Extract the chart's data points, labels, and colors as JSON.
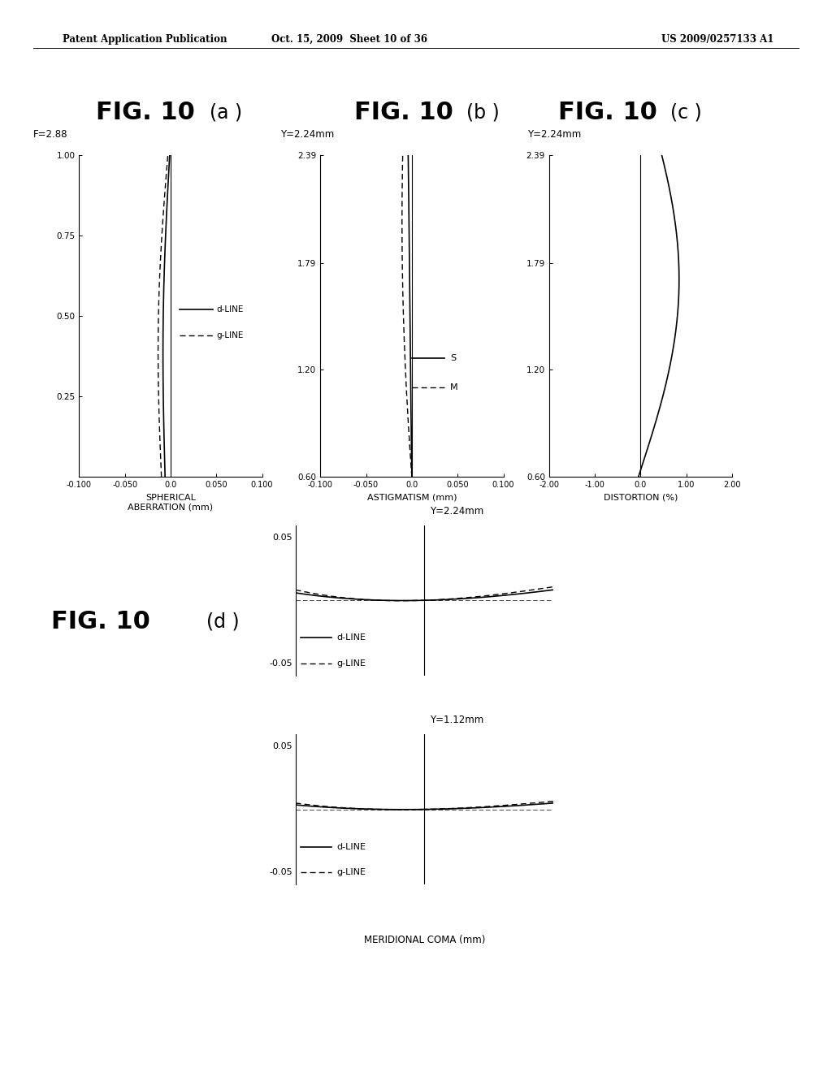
{
  "header_left": "Patent Application Publication",
  "header_mid": "Oct. 15, 2009  Sheet 10 of 36",
  "header_right": "US 2009/0257133 A1",
  "background": "#ffffff",
  "line_color": "#000000",
  "fig_a": {
    "label": "F=2.88",
    "xlim": [
      -0.1,
      0.1
    ],
    "ylim": [
      0,
      1.0
    ],
    "xticks": [
      -0.1,
      -0.05,
      0.0,
      0.05,
      0.1
    ],
    "xtick_labels": [
      "-0.100",
      "-0.050",
      "0.0",
      "0.050",
      "0.100"
    ],
    "yticks": [
      0.25,
      0.5,
      0.75,
      1.0
    ],
    "ytick_labels": [
      "0.25",
      "0.50",
      "0.75",
      "1.00"
    ],
    "xlabel": "SPHERICAL\nABERRATION (mm)"
  },
  "fig_b": {
    "label": "Y=2.24mm",
    "xlim": [
      -0.1,
      0.1
    ],
    "ylim": [
      0.6,
      2.39
    ],
    "xticks": [
      -0.1,
      -0.05,
      0.0,
      0.05,
      0.1
    ],
    "xtick_labels": [
      "-0.100",
      "-0.050",
      "0.0",
      "0.050",
      "0.100"
    ],
    "yticks": [
      0.6,
      1.2,
      1.79,
      2.39
    ],
    "ytick_labels": [
      "0.60",
      "1.20",
      "1.79",
      "2.39"
    ],
    "xlabel": "ASTIGMATISM (mm)"
  },
  "fig_c": {
    "label": "Y=2.24mm",
    "xlim": [
      -2.0,
      2.0
    ],
    "ylim": [
      0.6,
      2.39
    ],
    "xticks": [
      -2.0,
      -1.0,
      0.0,
      1.0,
      2.0
    ],
    "xtick_labels": [
      "-2.00",
      "-1.00",
      "0.0",
      "1.00",
      "2.00"
    ],
    "yticks": [
      0.6,
      1.2,
      1.79,
      2.39
    ],
    "ytick_labels": [
      "0.60",
      "1.20",
      "1.79",
      "2.39"
    ],
    "xlabel": "DISTORTION (%)"
  },
  "fig_d1": {
    "label": "Y=2.24mm",
    "ylim": [
      -0.05,
      0.05
    ],
    "ytick_top": "0.05",
    "ytick_bot": "-0.05"
  },
  "fig_d2": {
    "label": "Y=1.12mm",
    "ylim": [
      -0.05,
      0.05
    ],
    "ytick_top": "0.05",
    "ytick_bot": "-0.05",
    "xlabel": "MERIDIONAL COMA (mm)"
  }
}
